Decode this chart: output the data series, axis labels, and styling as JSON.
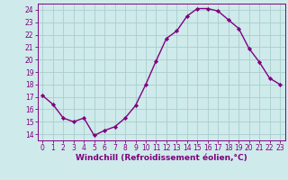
{
  "x": [
    0,
    1,
    2,
    3,
    4,
    5,
    6,
    7,
    8,
    9,
    10,
    11,
    12,
    13,
    14,
    15,
    16,
    17,
    18,
    19,
    20,
    21,
    22,
    23
  ],
  "y": [
    17.1,
    16.4,
    15.3,
    15.0,
    15.3,
    13.9,
    14.3,
    14.6,
    15.3,
    16.3,
    18.0,
    19.9,
    21.7,
    22.3,
    23.5,
    24.1,
    24.1,
    23.9,
    23.2,
    22.5,
    20.9,
    19.8,
    18.5,
    18.0
  ],
  "line_color": "#800080",
  "marker": "D",
  "marker_size": 2.2,
  "bg_color": "#ceeaea",
  "grid_color": "#aacece",
  "xlabel": "Windchill (Refroidissement éolien,°C)",
  "xlabel_color": "#800080",
  "ylabel_ticks": [
    14,
    15,
    16,
    17,
    18,
    19,
    20,
    21,
    22,
    23,
    24
  ],
  "ylim": [
    13.5,
    24.5
  ],
  "xlim": [
    -0.5,
    23.5
  ],
  "tick_color": "#800080",
  "axis_color": "#800080",
  "line_width": 1.0,
  "marker_color": "#800080",
  "tick_fontsize": 5.5,
  "xlabel_fontsize": 6.5
}
